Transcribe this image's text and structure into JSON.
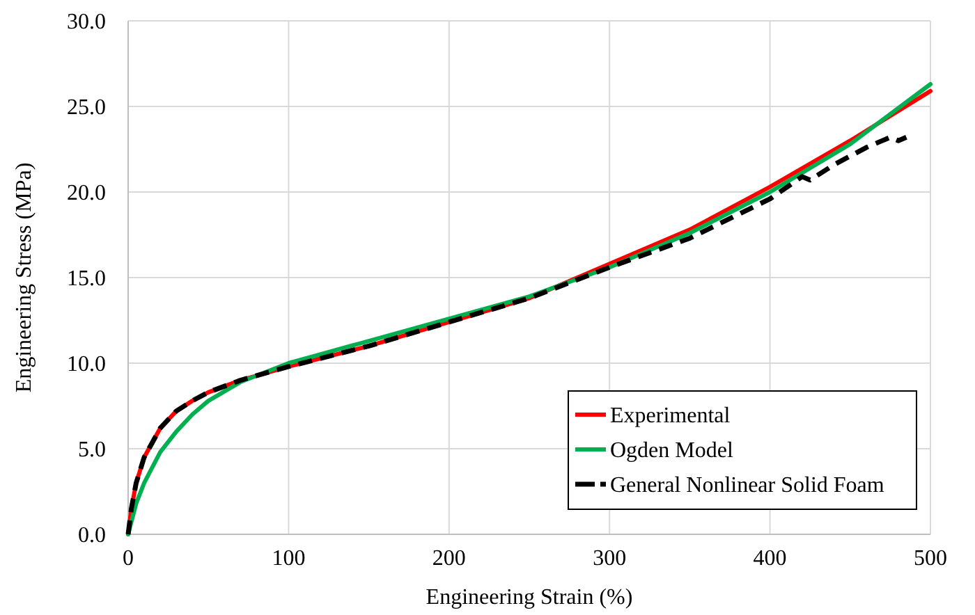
{
  "chart_data": {
    "type": "line",
    "xlabel": "Engineering Strain (%)",
    "ylabel": "Engineering Stress (MPa)",
    "xlim": [
      0,
      500
    ],
    "xticks": [
      0,
      100,
      200,
      300,
      400,
      500
    ],
    "ylim": [
      0,
      30
    ],
    "yticks": [
      {
        "value": 0,
        "label": "0.0"
      },
      {
        "value": 5,
        "label": "5.0"
      },
      {
        "value": 10,
        "label": "10.0"
      },
      {
        "value": 15,
        "label": "15.0"
      },
      {
        "value": 20,
        "label": "20.0"
      },
      {
        "value": 25,
        "label": "25.0"
      },
      {
        "value": 30,
        "label": "30.0"
      }
    ],
    "grid": true,
    "legend": "bottom right",
    "series": [
      {
        "name": "Experimental",
        "color": "#ff0000",
        "line_style": "solid",
        "x": [
          0,
          2,
          5,
          10,
          20,
          30,
          40,
          50,
          70,
          100,
          150,
          200,
          250,
          300,
          350,
          400,
          450,
          500
        ],
        "values": [
          0,
          1.5,
          3,
          4.5,
          6.2,
          7.2,
          7.8,
          8.3,
          9.0,
          9.8,
          11.0,
          12.4,
          13.8,
          15.8,
          17.8,
          20.3,
          23.0,
          25.9
        ]
      },
      {
        "name": "Ogden Model",
        "color": "#00b050",
        "line_style": "solid",
        "x": [
          0,
          5,
          10,
          20,
          30,
          40,
          50,
          70,
          100,
          150,
          200,
          250,
          300,
          350,
          400,
          450,
          500
        ],
        "values": [
          0,
          1.8,
          3.0,
          4.8,
          6.0,
          7.0,
          7.8,
          8.9,
          10.0,
          11.3,
          12.6,
          13.9,
          15.6,
          17.6,
          20.0,
          22.8,
          26.3
        ]
      },
      {
        "name": "General Nonlinear Solid Foam",
        "color": "#000000",
        "line_style": "dashed",
        "x": [
          0,
          2,
          5,
          10,
          20,
          30,
          40,
          50,
          70,
          100,
          150,
          200,
          250,
          300,
          350,
          400,
          420,
          425,
          440,
          460,
          475,
          480,
          485
        ],
        "values": [
          0,
          1.5,
          3,
          4.5,
          6.2,
          7.2,
          7.8,
          8.3,
          9.0,
          9.8,
          11.0,
          12.4,
          13.8,
          15.6,
          17.3,
          19.6,
          20.9,
          20.7,
          21.6,
          22.6,
          23.2,
          23.0,
          23.2
        ]
      }
    ]
  }
}
